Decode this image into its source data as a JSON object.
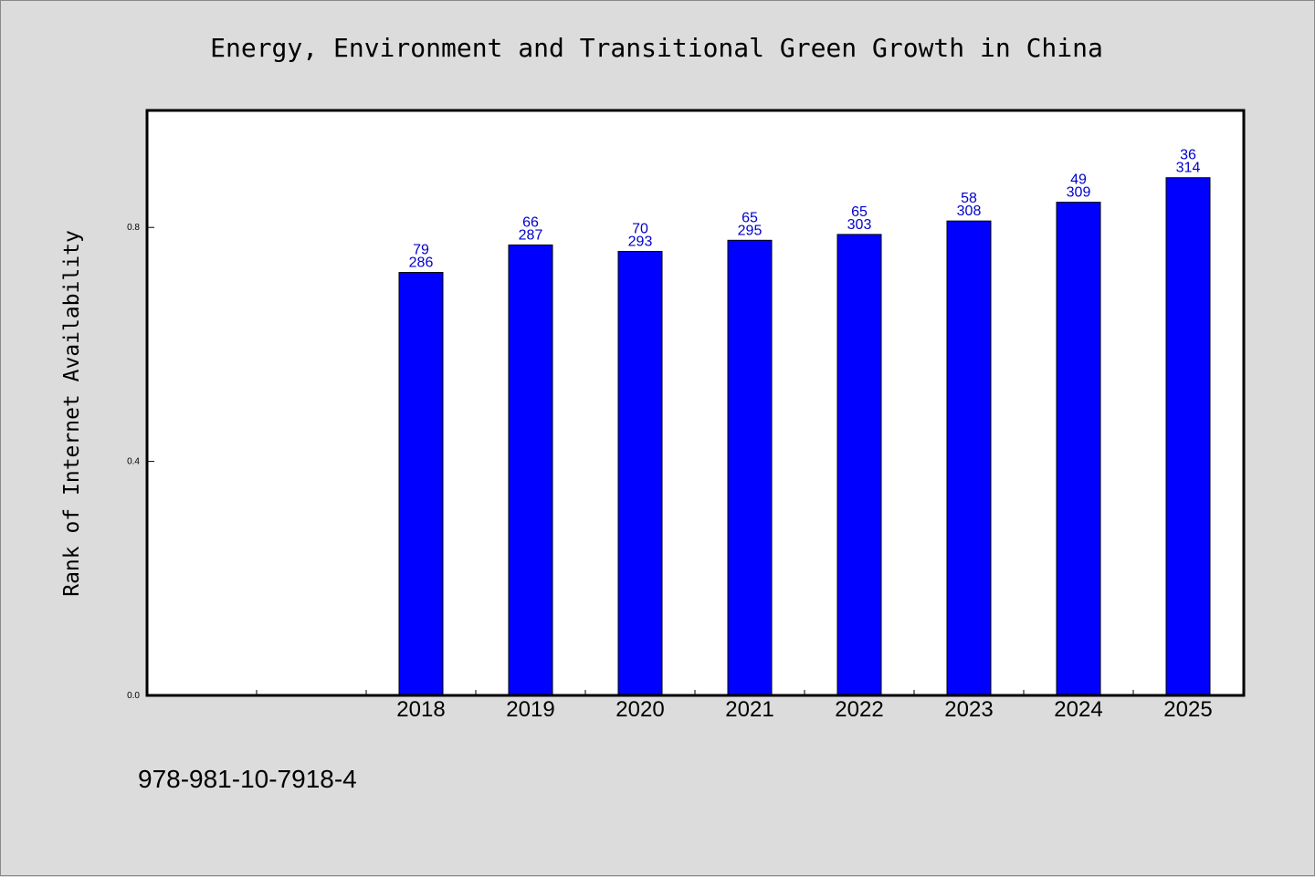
{
  "chart_data": {
    "type": "bar",
    "title": "Energy, Environment and Transitional Green Growth in China",
    "xlabel": "",
    "ylabel": "Rank of Internet Availability",
    "categories": [
      "2018",
      "2019",
      "2020",
      "2021",
      "2022",
      "2023",
      "2024",
      "2025"
    ],
    "values": [
      0.723,
      0.77,
      0.759,
      0.778,
      0.788,
      0.811,
      0.843,
      0.885
    ],
    "label_top": [
      "79",
      "66",
      "70",
      "65",
      "65",
      "58",
      "49",
      "36"
    ],
    "label_bottom": [
      "286",
      "287",
      "293",
      "295",
      "303",
      "308",
      "309",
      "314"
    ],
    "ylim": [
      0,
      1.0
    ],
    "yticks": [
      "0.0",
      "0.4",
      "0.8"
    ],
    "bar_color": "#0000ff",
    "label_color": "#0000cc",
    "background_color": "#dcdcdc",
    "grid": false
  },
  "footer": {
    "isbn": "978-981-10-7918-4"
  }
}
